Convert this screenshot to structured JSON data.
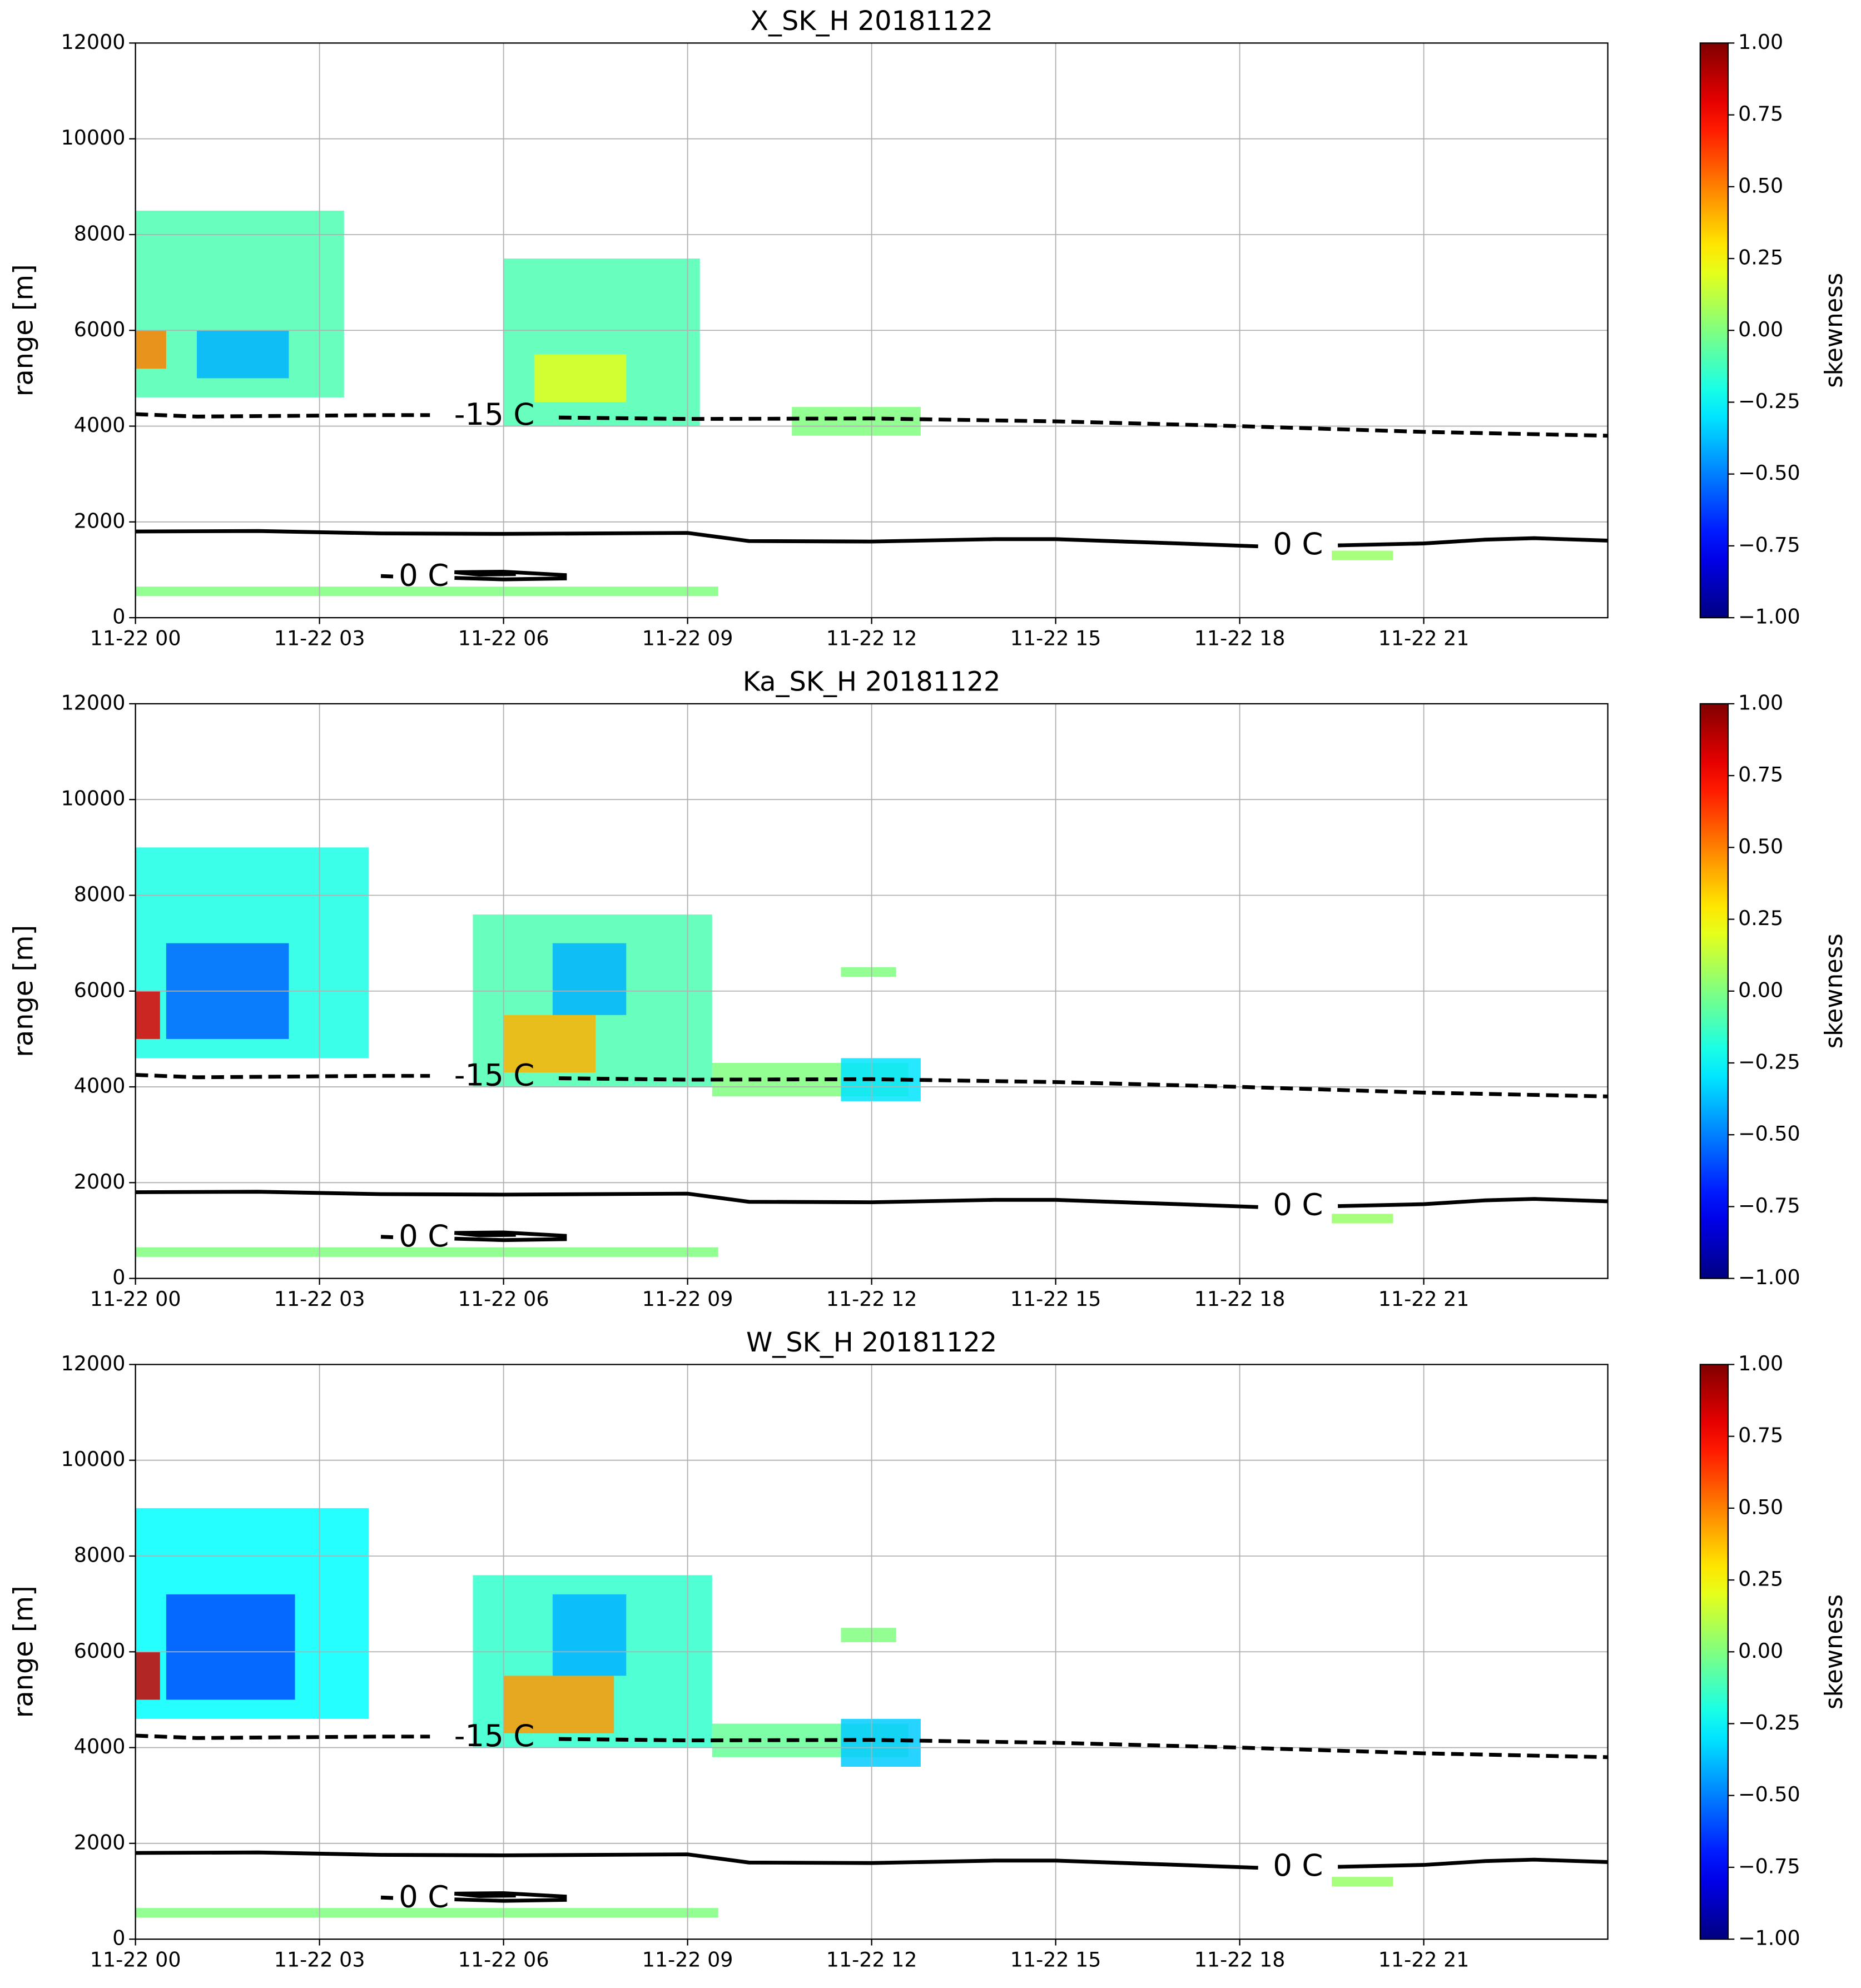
{
  "chart_data": [
    {
      "type": "heatmap",
      "title": "X_SK_H 20181122",
      "ylabel": "range [m]",
      "grid": true,
      "xlim": [
        0,
        24
      ],
      "xticks": [
        {
          "value": 0,
          "label": "11-22 00"
        },
        {
          "value": 3,
          "label": "11-22 03"
        },
        {
          "value": 6,
          "label": "11-22 06"
        },
        {
          "value": 9,
          "label": "11-22 09"
        },
        {
          "value": 12,
          "label": "11-22 12"
        },
        {
          "value": 15,
          "label": "11-22 15"
        },
        {
          "value": 18,
          "label": "11-22 18"
        },
        {
          "value": 21,
          "label": "11-22 21"
        }
      ],
      "ylim": [
        0,
        12000
      ],
      "yticks": [
        0,
        2000,
        4000,
        6000,
        8000,
        10000,
        12000
      ],
      "colorbar": {
        "label": "skewness",
        "lim": [
          -1,
          1
        ],
        "ticks": [
          {
            "value": -1,
            "label": "−1.00"
          },
          {
            "value": -0.75,
            "label": "−0.75"
          },
          {
            "value": -0.5,
            "label": "−0.50"
          },
          {
            "value": -0.25,
            "label": "−0.25"
          },
          {
            "value": 0,
            "label": "0.00"
          },
          0.25,
          {
            "value": 0.5,
            "label": "0.50"
          },
          0.75,
          {
            "value": 1,
            "label": "1.00"
          }
        ]
      },
      "echoes": [
        {
          "x": [
            0,
            3.4
          ],
          "y": [
            4600,
            8500
          ],
          "value": -0.1
        },
        {
          "x": [
            1,
            2.5
          ],
          "y": [
            5000,
            6000
          ],
          "value": -0.4
        },
        {
          "x": [
            0,
            0.5
          ],
          "y": [
            5200,
            6000
          ],
          "value": 0.5
        },
        {
          "x": [
            6,
            9.2
          ],
          "y": [
            4000,
            7500
          ],
          "value": -0.1
        },
        {
          "x": [
            6.5,
            8
          ],
          "y": [
            4500,
            5500
          ],
          "value": 0.2
        },
        {
          "x": [
            10.7,
            12.8
          ],
          "y": [
            3800,
            4400
          ],
          "value": 0
        },
        {
          "x": [
            0,
            9.5
          ],
          "y": [
            450,
            650
          ],
          "value": 0
        },
        {
          "x": [
            19.5,
            20.5
          ],
          "y": [
            1200,
            1400
          ],
          "value": 0.05
        }
      ],
      "contours": [
        {
          "label": "-15 C",
          "style": "dashed",
          "x": [
            0,
            1,
            4,
            4.8,
            null,
            6.9,
            9,
            12,
            15,
            18,
            21,
            24
          ],
          "y": [
            4250,
            4200,
            4230,
            4230,
            null,
            4180,
            4150,
            4160,
            4100,
            4000,
            3880,
            3800
          ]
        },
        {
          "label": "0 C",
          "style": "solid",
          "x": [
            0,
            2,
            4,
            6,
            9,
            10,
            12,
            14,
            15,
            17,
            18.3,
            null,
            19.6,
            21,
            22,
            22.8,
            24
          ],
          "y": [
            1800,
            1810,
            1760,
            1750,
            1770,
            1600,
            1590,
            1640,
            1640,
            1550,
            1490,
            null,
            1510,
            1550,
            1630,
            1660,
            1610
          ]
        },
        {
          "label": "0 C",
          "style": "solid",
          "x": [
            4,
            4.2,
            null,
            5.2,
            6,
            7,
            7,
            6,
            5.2,
            5.6,
            6.2
          ],
          "y": [
            870,
            860,
            null,
            830,
            800,
            820,
            890,
            960,
            950,
            900,
            910
          ]
        }
      ]
    },
    {
      "type": "heatmap",
      "title": "Ka_SK_H 20181122",
      "ylabel": "range [m]",
      "grid": true,
      "xlim": [
        0,
        24
      ],
      "xticks": [
        {
          "value": 0,
          "label": "11-22 00"
        },
        {
          "value": 3,
          "label": "11-22 03"
        },
        {
          "value": 6,
          "label": "11-22 06"
        },
        {
          "value": 9,
          "label": "11-22 09"
        },
        {
          "value": 12,
          "label": "11-22 12"
        },
        {
          "value": 15,
          "label": "11-22 15"
        },
        {
          "value": 18,
          "label": "11-22 18"
        },
        {
          "value": 21,
          "label": "11-22 21"
        }
      ],
      "ylim": [
        0,
        12000
      ],
      "yticks": [
        0,
        2000,
        4000,
        6000,
        8000,
        10000,
        12000
      ],
      "colorbar": {
        "label": "skewness",
        "lim": [
          -1,
          1
        ],
        "ticks": [
          {
            "value": -1,
            "label": "−1.00"
          },
          {
            "value": -0.75,
            "label": "−0.75"
          },
          {
            "value": -0.5,
            "label": "−0.50"
          },
          {
            "value": -0.25,
            "label": "−0.25"
          },
          {
            "value": 0,
            "label": "0.00"
          },
          0.25,
          {
            "value": 0.5,
            "label": "0.50"
          },
          0.75,
          {
            "value": 1,
            "label": "1.00"
          }
        ]
      },
      "echoes": [
        {
          "x": [
            0,
            3.8
          ],
          "y": [
            4600,
            9000
          ],
          "value": -0.2
        },
        {
          "x": [
            0.5,
            2.5
          ],
          "y": [
            5000,
            7000
          ],
          "value": -0.55
        },
        {
          "x": [
            0,
            0.4
          ],
          "y": [
            5000,
            6000
          ],
          "value": 0.8
        },
        {
          "x": [
            5.5,
            9.4
          ],
          "y": [
            4000,
            7600
          ],
          "value": -0.1
        },
        {
          "x": [
            6,
            7.5
          ],
          "y": [
            4300,
            5500
          ],
          "value": 0.4
        },
        {
          "x": [
            6.8,
            8
          ],
          "y": [
            5500,
            7000
          ],
          "value": -0.4
        },
        {
          "x": [
            9.4,
            12.6
          ],
          "y": [
            3800,
            4500
          ],
          "value": 0
        },
        {
          "x": [
            11.5,
            12.8
          ],
          "y": [
            3700,
            4600
          ],
          "value": -0.3
        },
        {
          "x": [
            11.5,
            12.4
          ],
          "y": [
            6300,
            6500
          ],
          "value": 0
        },
        {
          "x": [
            0,
            9.5
          ],
          "y": [
            450,
            650
          ],
          "value": 0
        },
        {
          "x": [
            19.5,
            20.5
          ],
          "y": [
            1150,
            1350
          ],
          "value": 0.05
        }
      ],
      "contours": [
        {
          "label": "-15 C",
          "style": "dashed",
          "x": [
            0,
            1,
            4,
            4.8,
            null,
            6.9,
            9,
            12,
            15,
            18,
            21,
            24
          ],
          "y": [
            4250,
            4200,
            4230,
            4230,
            null,
            4180,
            4150,
            4160,
            4100,
            4000,
            3880,
            3800
          ]
        },
        {
          "label": "0 C",
          "style": "solid",
          "x": [
            0,
            2,
            4,
            6,
            9,
            10,
            12,
            14,
            15,
            17,
            18.3,
            null,
            19.6,
            21,
            22,
            22.8,
            24
          ],
          "y": [
            1800,
            1810,
            1760,
            1750,
            1770,
            1600,
            1590,
            1640,
            1640,
            1550,
            1490,
            null,
            1510,
            1550,
            1630,
            1660,
            1610
          ]
        },
        {
          "label": "0 C",
          "style": "solid",
          "x": [
            4,
            4.2,
            null,
            5.2,
            6,
            7,
            7,
            6,
            5.2,
            5.6,
            6.2
          ],
          "y": [
            870,
            860,
            null,
            830,
            800,
            820,
            890,
            960,
            950,
            900,
            910
          ]
        }
      ]
    },
    {
      "type": "heatmap",
      "title": "W_SK_H 20181122",
      "ylabel": "range [m]",
      "grid": true,
      "xlim": [
        0,
        24
      ],
      "xticks": [
        {
          "value": 0,
          "label": "11-22 00"
        },
        {
          "value": 3,
          "label": "11-22 03"
        },
        {
          "value": 6,
          "label": "11-22 06"
        },
        {
          "value": 9,
          "label": "11-22 09"
        },
        {
          "value": 12,
          "label": "11-22 12"
        },
        {
          "value": 15,
          "label": "11-22 15"
        },
        {
          "value": 18,
          "label": "11-22 18"
        },
        {
          "value": 21,
          "label": "11-22 21"
        }
      ],
      "ylim": [
        0,
        12000
      ],
      "yticks": [
        0,
        2000,
        4000,
        6000,
        8000,
        10000,
        12000
      ],
      "colorbar": {
        "label": "skewness",
        "lim": [
          -1,
          1
        ],
        "ticks": [
          {
            "value": -1,
            "label": "−1.00"
          },
          {
            "value": -0.75,
            "label": "−0.75"
          },
          {
            "value": -0.5,
            "label": "−0.50"
          },
          {
            "value": -0.25,
            "label": "−0.25"
          },
          {
            "value": 0,
            "label": "0.00"
          },
          0.25,
          {
            "value": 0.5,
            "label": "0.50"
          },
          0.75,
          {
            "value": 1,
            "label": "1.00"
          }
        ]
      },
      "echoes": [
        {
          "x": [
            0,
            3.8
          ],
          "y": [
            4600,
            9000
          ],
          "value": -0.25
        },
        {
          "x": [
            0.5,
            2.6
          ],
          "y": [
            5000,
            7200
          ],
          "value": -0.6
        },
        {
          "x": [
            0,
            0.4
          ],
          "y": [
            5000,
            6000
          ],
          "value": 0.85
        },
        {
          "x": [
            5.5,
            9.4
          ],
          "y": [
            4000,
            7600
          ],
          "value": -0.15
        },
        {
          "x": [
            6,
            7.8
          ],
          "y": [
            4300,
            5500
          ],
          "value": 0.45
        },
        {
          "x": [
            6.8,
            8
          ],
          "y": [
            5500,
            7200
          ],
          "value": -0.4
        },
        {
          "x": [
            9.4,
            12.6
          ],
          "y": [
            3800,
            4500
          ],
          "value": -0.05
        },
        {
          "x": [
            11.5,
            12.8
          ],
          "y": [
            3600,
            4600
          ],
          "value": -0.35
        },
        {
          "x": [
            11.5,
            12.4
          ],
          "y": [
            6200,
            6500
          ],
          "value": 0
        },
        {
          "x": [
            0,
            9.5
          ],
          "y": [
            450,
            650
          ],
          "value": 0
        },
        {
          "x": [
            19.5,
            20.5
          ],
          "y": [
            1100,
            1300
          ],
          "value": 0.05
        }
      ],
      "contours": [
        {
          "label": "-15 C",
          "style": "dashed",
          "x": [
            0,
            1,
            4,
            4.8,
            null,
            6.9,
            9,
            12,
            15,
            18,
            21,
            24
          ],
          "y": [
            4250,
            4200,
            4230,
            4230,
            null,
            4180,
            4150,
            4160,
            4100,
            4000,
            3880,
            3800
          ]
        },
        {
          "label": "0 C",
          "style": "solid",
          "x": [
            0,
            2,
            4,
            6,
            9,
            10,
            12,
            14,
            15,
            17,
            18.3,
            null,
            19.6,
            21,
            22,
            22.8,
            24
          ],
          "y": [
            1800,
            1810,
            1760,
            1750,
            1770,
            1600,
            1590,
            1640,
            1640,
            1550,
            1490,
            null,
            1510,
            1550,
            1630,
            1660,
            1610
          ]
        },
        {
          "label": "0 C",
          "style": "solid",
          "x": [
            4,
            4.2,
            null,
            5.2,
            6,
            7,
            7,
            6,
            5.2,
            5.6,
            6.2
          ],
          "y": [
            870,
            860,
            null,
            830,
            800,
            820,
            890,
            960,
            950,
            900,
            910
          ]
        }
      ]
    }
  ]
}
